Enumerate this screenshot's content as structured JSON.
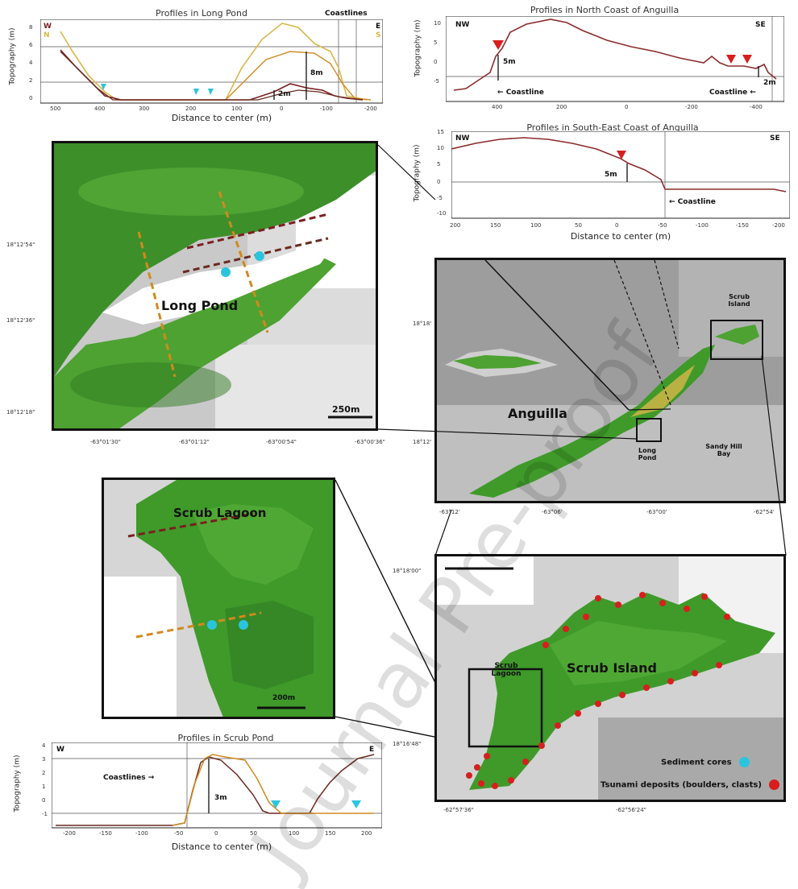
{
  "colors": {
    "land_green": "#3f9a2a",
    "sea_grey": "#c9c9c9",
    "profile_dark_red": "#7a1f1f",
    "profile_brown": "#6b2a20",
    "profile_orange": "#d08a1e",
    "profile_yellow": "#d9b64a",
    "coast_profile": "#8b2b2b",
    "sediment_core": "#2bc4dd",
    "tsunami_deposit": "#d81e1e"
  },
  "long_pond_profiles": {
    "title": "Profiles in Long Pond",
    "ylabel": "Topography (m)",
    "xlabel": "Distance to center (m)",
    "left_dir": "W",
    "left_dir2": "N",
    "right_dir": "E",
    "right_dir2": "S",
    "coastlines_label": "Coastlines",
    "height_labels": [
      "8m",
      "2m"
    ],
    "xticks": [
      "500",
      "400",
      "300",
      "200",
      "100",
      "0",
      "-100",
      "-200"
    ],
    "yticks": [
      "8",
      "6",
      "4",
      "2",
      "0"
    ]
  },
  "north_coast_profile": {
    "title": "Profiles in North Coast of Anguilla",
    "ylabel": "Topography (m)",
    "left_dir": "NW",
    "right_dir": "SE",
    "coastline_left": "Coastline",
    "coastline_right": "Coastline",
    "height_labels": [
      "5m",
      "2m"
    ],
    "xticks": [
      "400",
      "200",
      "0",
      "-200",
      "-400"
    ],
    "yticks": [
      "10",
      "5",
      "0",
      "-5"
    ]
  },
  "southeast_coast_profile": {
    "title": "Profiles in South-East Coast of Anguilla",
    "ylabel": "Topography (m)",
    "xlabel": "Distance to center (m)",
    "left_dir": "NW",
    "right_dir": "SE",
    "coastline_label": "Coastline",
    "height_label": "5m",
    "xticks": [
      "200",
      "150",
      "100",
      "50",
      "0",
      "-50",
      "-100",
      "-150",
      "-200"
    ],
    "yticks": [
      "15",
      "10",
      "5",
      "0",
      "-5",
      "-10"
    ]
  },
  "long_pond_map": {
    "label": "Long Pond",
    "scale": "250m",
    "lat_ticks": [
      "18°12'54\"",
      "18°12'36\"",
      "18°12'18\""
    ],
    "lon_ticks": [
      "-63°01'30\"",
      "-63°01'12\"",
      "-63°00'54\"",
      "-63°00'36\""
    ]
  },
  "anguilla_map": {
    "label": "Anguilla",
    "scrub_island_label": "Scrub Island",
    "long_pond_label": "Long Pond",
    "sandy_hill_label": "Sandy Hill Bay",
    "lat_ticks": [
      "18°18'",
      "18°12'"
    ],
    "lon_ticks": [
      "-63°12'",
      "-63°06'",
      "-63°00'",
      "-62°54'"
    ]
  },
  "scrub_lagoon_map": {
    "label": "Scrub Lagoon",
    "scale": "200m"
  },
  "scrub_island_map": {
    "label": "Scrub Island",
    "lagoon_label": "Scrub Lagoon",
    "lat_ticks": [
      "18°18'00\"",
      "18°16'48\""
    ],
    "lon_ticks": [
      "-62°57'36\"",
      "-62°56'24\""
    ],
    "legend_sediment": "Sediment cores",
    "legend_tsunami": "Tsunami deposits (boulders, clasts)"
  },
  "scrub_pond_profiles": {
    "title": "Profiles in Scrub Pond",
    "ylabel": "Topography (m)",
    "xlabel": "Distance to center (m)",
    "left_dir": "W",
    "right_dir": "E",
    "coastlines_label": "Coastlines",
    "height_label": "3m",
    "xticks": [
      "-200",
      "-150",
      "-100",
      "-50",
      "0",
      "50",
      "100",
      "150",
      "200"
    ],
    "yticks": [
      "4",
      "3",
      "2",
      "1",
      "0",
      "-1"
    ]
  },
  "watermark": "Journal Pre-proof"
}
